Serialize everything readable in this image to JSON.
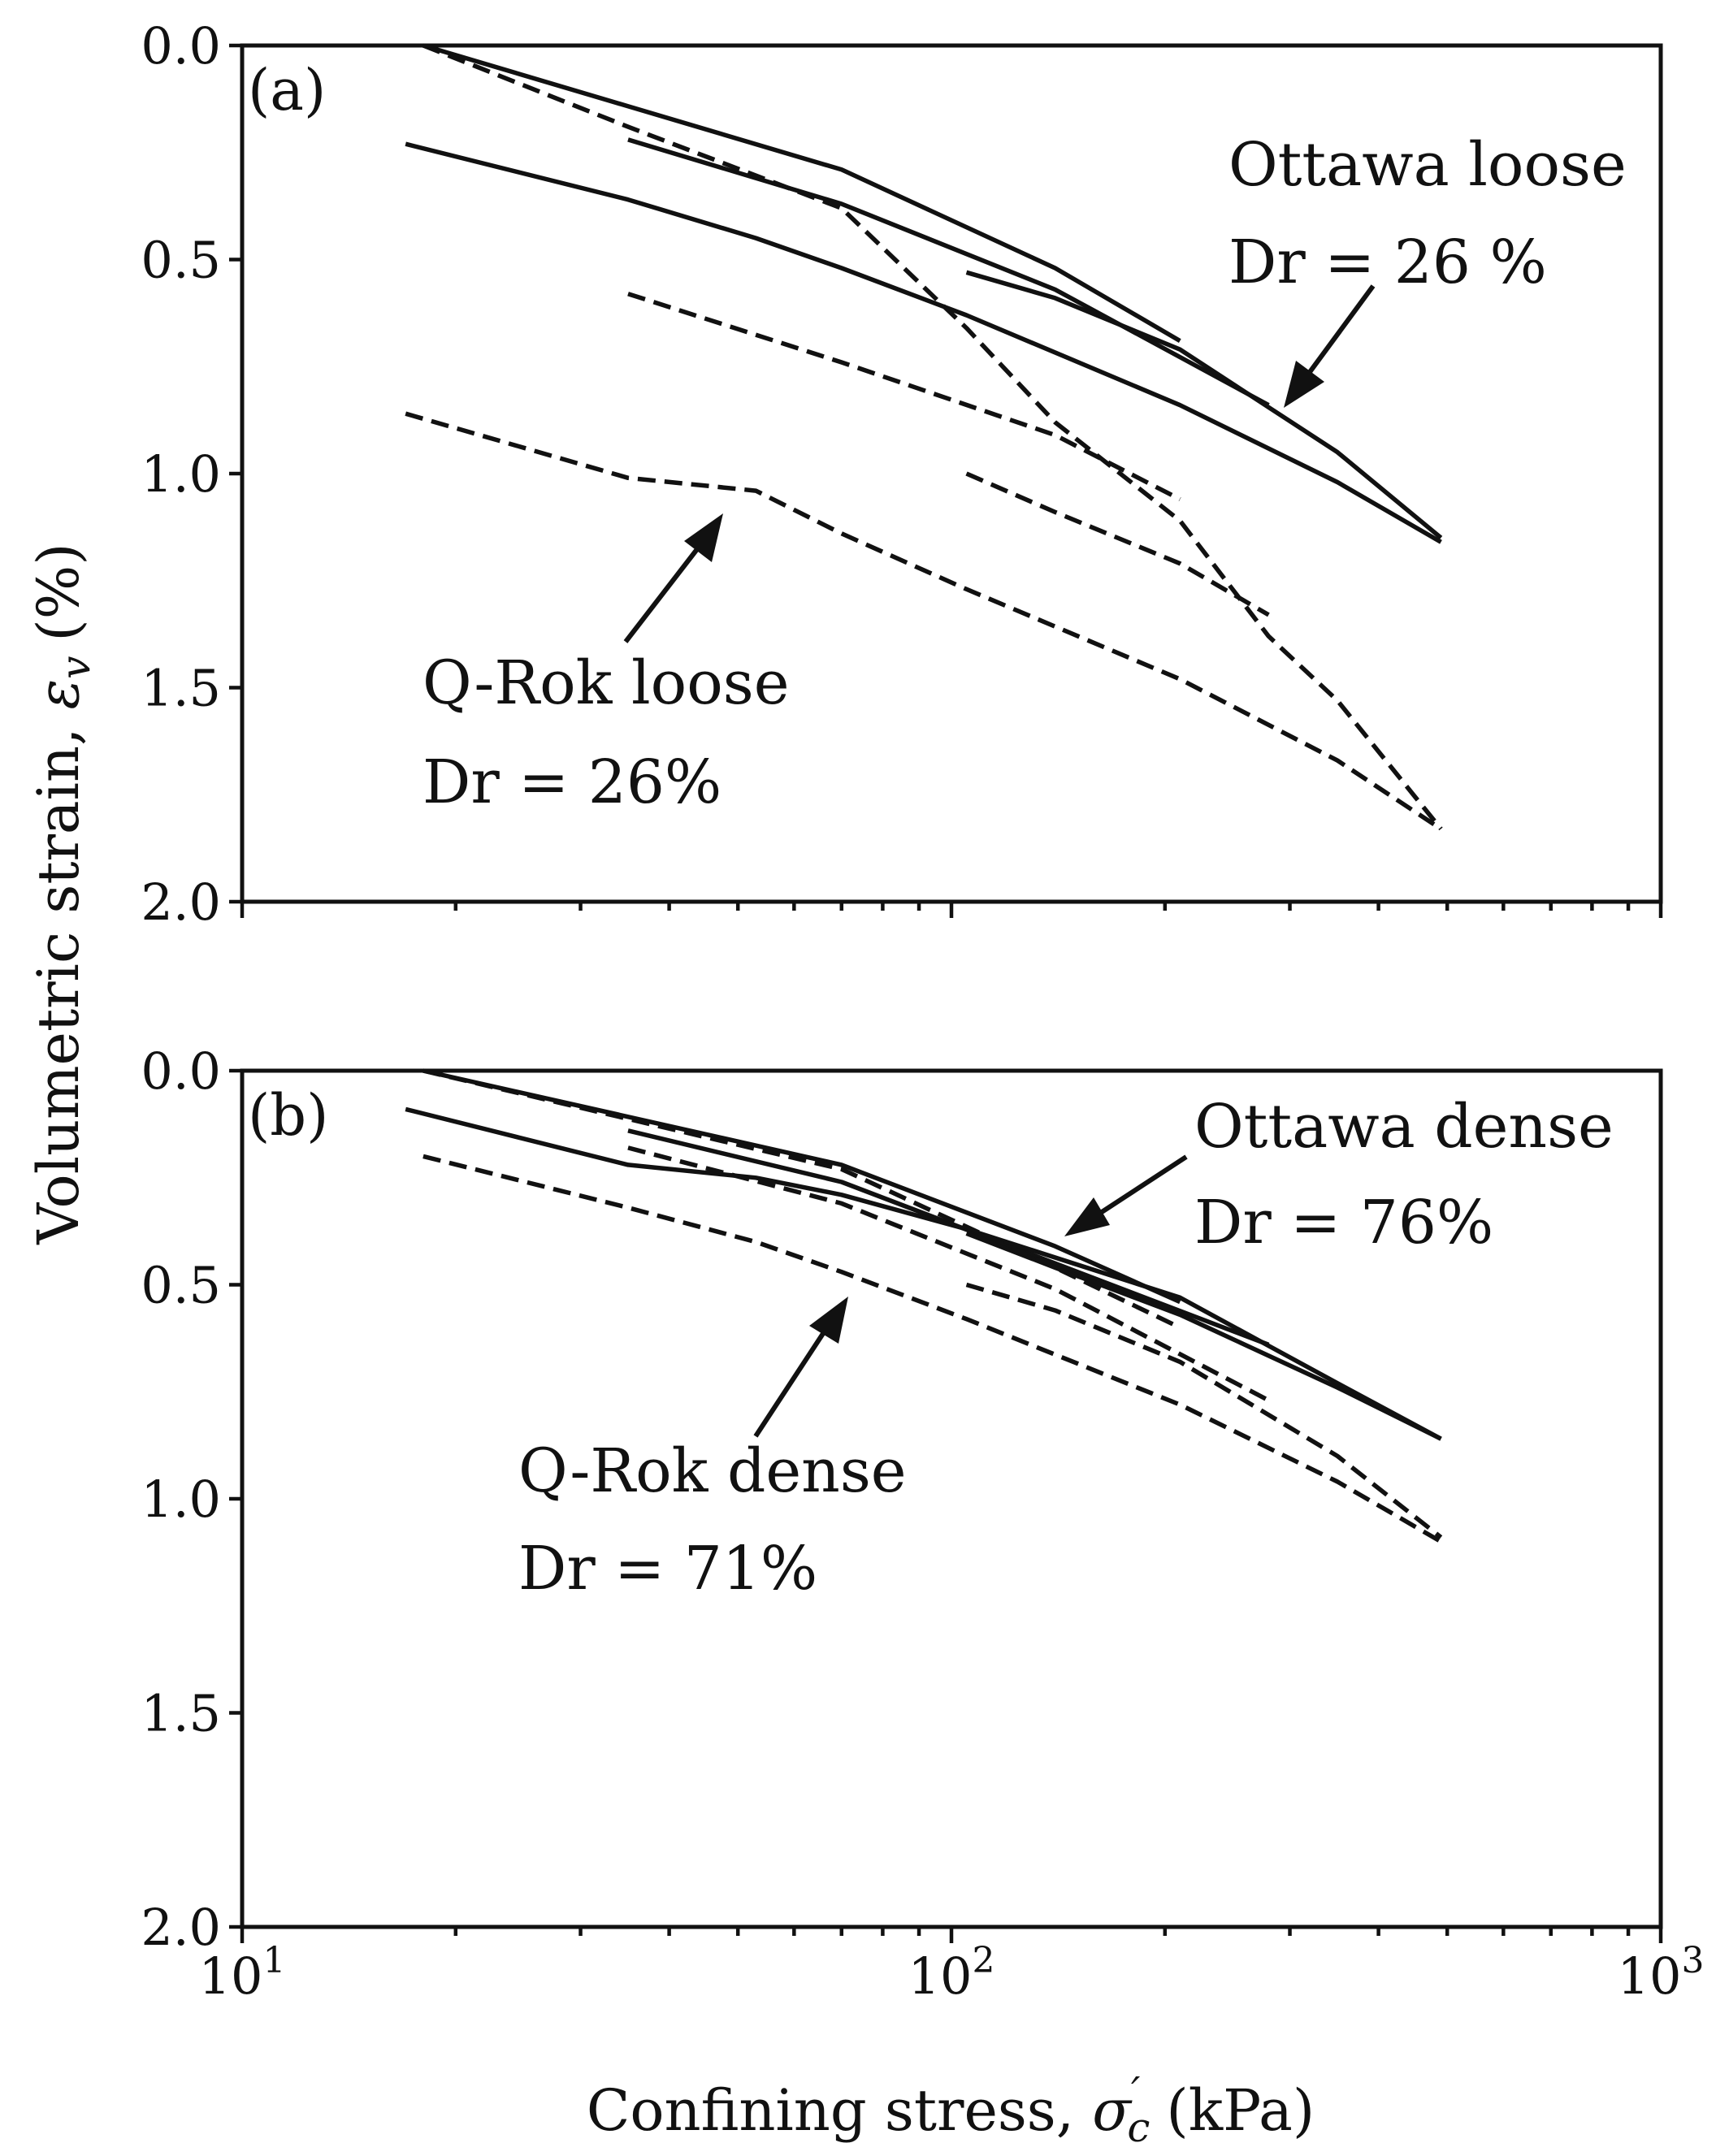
{
  "chart_data": [
    {
      "type": "line",
      "panel": "(a)",
      "xscale": "log",
      "xlim": [
        10,
        1000
      ],
      "ylim": [
        2.0,
        0.0
      ],
      "yticks": [
        "0.0",
        "0.5",
        "1.0",
        "1.5",
        "2.0"
      ],
      "series": [
        {
          "name": "Ottawa loose test 1",
          "material": "Ottawa",
          "style": "solid",
          "x": [
            18,
            70,
            140,
            210
          ],
          "y": [
            0.0,
            0.29,
            0.52,
            0.69
          ]
        },
        {
          "name": "Ottawa loose test 2",
          "material": "Ottawa",
          "style": "solid",
          "x": [
            35,
            70,
            140,
            280
          ],
          "y": [
            0.22,
            0.37,
            0.57,
            0.84
          ]
        },
        {
          "name": "Ottawa loose test 3",
          "material": "Ottawa",
          "style": "solid",
          "x": [
            105,
            140,
            210,
            350,
            490
          ],
          "y": [
            0.53,
            0.59,
            0.71,
            0.95,
            1.15
          ]
        },
        {
          "name": "Ottawa loose test 4",
          "material": "Ottawa",
          "style": "solid",
          "x": [
            17,
            35,
            53,
            70,
            105,
            210,
            350,
            490
          ],
          "y": [
            0.23,
            0.36,
            0.45,
            0.52,
            0.63,
            0.84,
            1.02,
            1.16
          ]
        },
        {
          "name": "Q-Rok loose test 1",
          "material": "Q-Rok",
          "style": "dashed",
          "x": [
            18,
            35,
            70,
            105,
            140,
            210,
            280,
            350,
            490
          ],
          "y": [
            0.0,
            0.19,
            0.38,
            0.66,
            0.88,
            1.11,
            1.38,
            1.53,
            1.83
          ]
        },
        {
          "name": "Q-Rok loose test 2",
          "material": "Q-Rok",
          "style": "dashed",
          "x": [
            35,
            70,
            140,
            210
          ],
          "y": [
            0.58,
            0.74,
            0.91,
            1.06
          ]
        },
        {
          "name": "Q-Rok loose test 3",
          "material": "Q-Rok",
          "style": "dashed",
          "x": [
            105,
            140,
            210,
            280
          ],
          "y": [
            1.0,
            1.09,
            1.21,
            1.33
          ]
        },
        {
          "name": "Q-Rok loose test 4",
          "material": "Q-Rok",
          "style": "dashed",
          "x": [
            17,
            35,
            53,
            70,
            105,
            210,
            350,
            490
          ],
          "y": [
            0.86,
            1.01,
            1.04,
            1.14,
            1.27,
            1.48,
            1.67,
            1.83
          ]
        }
      ],
      "annotations": [
        {
          "lines": [
            "Ottawa loose",
            "Dr = 26 %"
          ]
        },
        {
          "lines": [
            "Q-Rok loose",
            "Dr = 26%"
          ]
        }
      ]
    },
    {
      "type": "line",
      "panel": "(b)",
      "xscale": "log",
      "xlim": [
        10,
        1000
      ],
      "ylim": [
        2.0,
        0.0
      ],
      "yticks": [
        "0.0",
        "0.5",
        "1.0",
        "1.5",
        "2.0"
      ],
      "xticks": [
        "10",
        "10",
        "10"
      ],
      "xtick_exponents": [
        "1",
        "2",
        "3"
      ],
      "series": [
        {
          "name": "Ottawa dense test 1",
          "material": "Ottawa",
          "style": "solid",
          "x": [
            18,
            70,
            140,
            210
          ],
          "y": [
            0.0,
            0.22,
            0.41,
            0.54
          ]
        },
        {
          "name": "Ottawa dense test 2",
          "material": "Ottawa",
          "style": "solid",
          "x": [
            35,
            70,
            140,
            280
          ],
          "y": [
            0.14,
            0.26,
            0.45,
            0.64
          ]
        },
        {
          "name": "Ottawa dense test 3",
          "material": "Ottawa",
          "style": "solid",
          "x": [
            105,
            140,
            210,
            350,
            490
          ],
          "y": [
            0.38,
            0.46,
            0.57,
            0.74,
            0.86
          ]
        },
        {
          "name": "Ottawa dense test 4",
          "material": "Ottawa",
          "style": "solid",
          "x": [
            17,
            35,
            53,
            70,
            105,
            210,
            350,
            490
          ],
          "y": [
            0.09,
            0.22,
            0.25,
            0.29,
            0.37,
            0.53,
            0.73,
            0.86
          ]
        },
        {
          "name": "Q-Rok dense test 1",
          "material": "Q-Rok",
          "style": "dashed",
          "x": [
            18,
            70,
            140,
            210
          ],
          "y": [
            0.0,
            0.23,
            0.46,
            0.6
          ]
        },
        {
          "name": "Q-Rok dense test 2",
          "material": "Q-Rok",
          "style": "dashed",
          "x": [
            35,
            70,
            140,
            280
          ],
          "y": [
            0.18,
            0.31,
            0.51,
            0.77
          ]
        },
        {
          "name": "Q-Rok dense test 3",
          "material": "Q-Rok",
          "style": "dashed",
          "x": [
            105,
            140,
            210,
            350,
            490
          ],
          "y": [
            0.5,
            0.56,
            0.68,
            0.9,
            1.09
          ]
        },
        {
          "name": "Q-Rok dense test 4",
          "material": "Q-Rok",
          "style": "dashed",
          "x": [
            18,
            35,
            53,
            70,
            105,
            210,
            350,
            490
          ],
          "y": [
            0.2,
            0.32,
            0.4,
            0.47,
            0.58,
            0.78,
            0.96,
            1.1
          ]
        }
      ],
      "annotations": [
        {
          "lines": [
            "Ottawa dense",
            "Dr = 76%"
          ]
        },
        {
          "lines": [
            "Q-Rok dense",
            "Dr = 71%"
          ]
        }
      ]
    }
  ],
  "ylabel_text": "Volumetric strain, ",
  "ylabel_symbol": "ε",
  "ylabel_subscript": "v",
  "ylabel_unit": "(%)",
  "xlabel_text": "Confining stress, ",
  "xlabel_symbol": "σ",
  "xlabel_subscript": "c",
  "xlabel_prime": "′",
  "xlabel_unit": "(kPa)"
}
